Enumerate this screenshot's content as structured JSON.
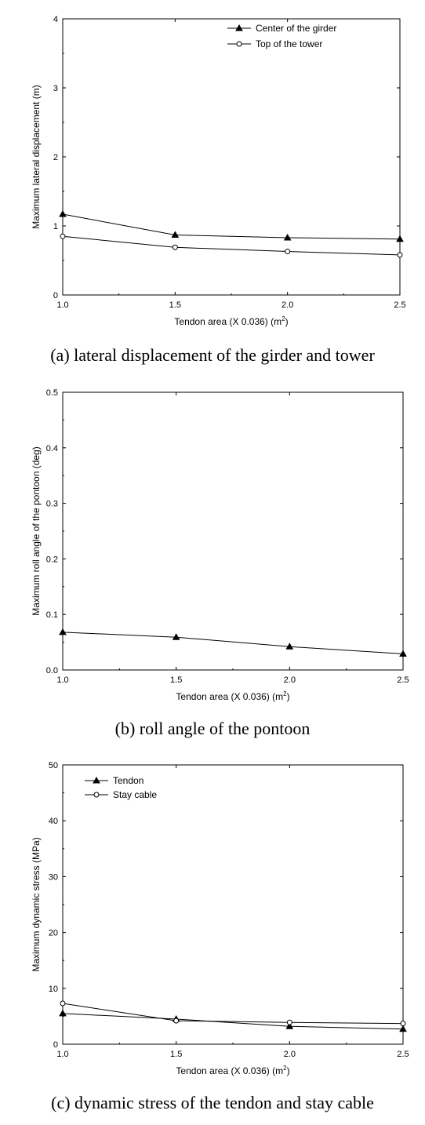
{
  "chart_data": [
    {
      "type": "line",
      "xlabel": "Tendon area (X 0.036) (m",
      "xlabel_sup": "2",
      "xlabel_end": ")",
      "ylabel": "Maximum lateral displacement (m)",
      "xlim": [
        1.0,
        2.5
      ],
      "ylim": [
        0,
        4
      ],
      "xticks": [
        "1.0",
        "1.5",
        "2.0",
        "2.5"
      ],
      "yticks": [
        "0",
        "1",
        "2",
        "3",
        "4"
      ],
      "legend_position": "top-right",
      "series": [
        {
          "name": "Center of the girder",
          "marker": "filled-triangle",
          "x": [
            1.0,
            1.5,
            2.0,
            2.5
          ],
          "values": [
            1.17,
            0.87,
            0.83,
            0.81
          ]
        },
        {
          "name": "Top of the tower",
          "marker": "open-circle",
          "x": [
            1.0,
            1.5,
            2.0,
            2.5
          ],
          "values": [
            0.85,
            0.69,
            0.63,
            0.58
          ]
        }
      ],
      "caption": "(a) lateral displacement of the girder and tower"
    },
    {
      "type": "line",
      "xlabel": "Tendon area (X 0.036) (m",
      "xlabel_sup": "2",
      "xlabel_end": ")",
      "ylabel": "Maximum roll angle of the pontoon (deg)",
      "xlim": [
        1.0,
        2.5
      ],
      "ylim": [
        0,
        0.5
      ],
      "xticks": [
        "1.0",
        "1.5",
        "2.0",
        "2.5"
      ],
      "yticks": [
        "0.0",
        "0.1",
        "0.2",
        "0.3",
        "0.4",
        "0.5"
      ],
      "legend_position": "none",
      "series": [
        {
          "marker": "filled-triangle",
          "x": [
            1.0,
            1.5,
            2.0,
            2.5
          ],
          "values": [
            0.068,
            0.059,
            0.042,
            0.029
          ]
        }
      ],
      "caption": "(b) roll angle of the pontoon"
    },
    {
      "type": "line",
      "xlabel": "Tendon area (X 0.036) (m",
      "xlabel_sup": "2",
      "xlabel_end": ")",
      "ylabel": "Maximum dynamic stress (MPa)",
      "xlim": [
        1.0,
        2.5
      ],
      "ylim": [
        0,
        50
      ],
      "xticks": [
        "1.0",
        "1.5",
        "2.0",
        "2.5"
      ],
      "yticks": [
        "0",
        "10",
        "20",
        "30",
        "40",
        "50"
      ],
      "legend_position": "top-left",
      "series": [
        {
          "name": "Tendon",
          "marker": "filled-triangle",
          "x": [
            1.0,
            1.5,
            2.0,
            2.5
          ],
          "values": [
            5.5,
            4.5,
            3.2,
            2.7
          ]
        },
        {
          "name": "Stay cable",
          "marker": "open-circle",
          "x": [
            1.0,
            1.5,
            2.0,
            2.5
          ],
          "values": [
            7.3,
            4.2,
            3.9,
            3.7
          ]
        }
      ],
      "caption": "(c) dynamic stress of the tendon and stay cable"
    }
  ]
}
